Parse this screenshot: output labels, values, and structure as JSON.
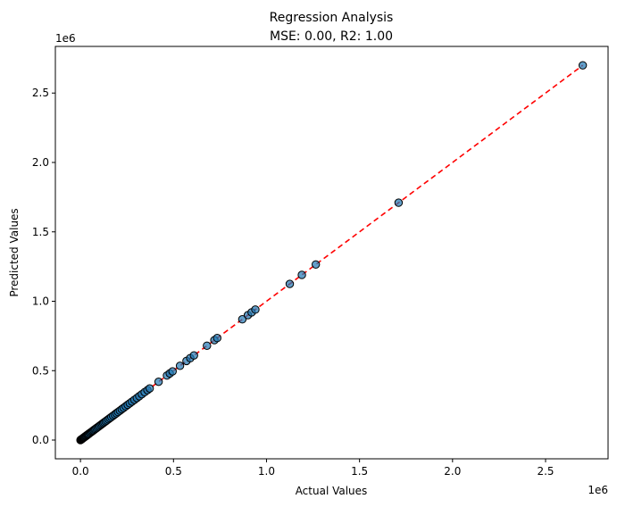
{
  "chart_data": {
    "type": "scatter",
    "title_line1": "Regression Analysis",
    "title_line2": "MSE: 0.00, R2: 1.00",
    "xlabel": "Actual Values",
    "ylabel": "Predicted Values",
    "x_offset_label": "1e6",
    "y_offset_label": "1e6",
    "xlim": [
      -0.135,
      2.836
    ],
    "ylim": [
      -0.135,
      2.836
    ],
    "xticks": [
      0.0,
      0.5,
      1.0,
      1.5,
      2.0,
      2.5
    ],
    "yticks": [
      0.0,
      0.5,
      1.0,
      1.5,
      2.0,
      2.5
    ],
    "xtick_labels": [
      "0.0",
      "0.5",
      "1.0",
      "1.5",
      "2.0",
      "2.5"
    ],
    "ytick_labels": [
      "0.0",
      "0.5",
      "1.0",
      "1.5",
      "2.0",
      "2.5"
    ],
    "reference_line": {
      "from": [
        0.0,
        0.0
      ],
      "to": [
        2.7,
        2.7
      ],
      "style": "dashed",
      "color": "#ff0000"
    },
    "point_color": "#1f77b4",
    "point_edge_color": "#000000",
    "points": [
      [
        0.0,
        0.0
      ],
      [
        0.002,
        0.002
      ],
      [
        0.004,
        0.004
      ],
      [
        0.006,
        0.006
      ],
      [
        0.008,
        0.008
      ],
      [
        0.01,
        0.01
      ],
      [
        0.012,
        0.012
      ],
      [
        0.015,
        0.015
      ],
      [
        0.018,
        0.018
      ],
      [
        0.021,
        0.021
      ],
      [
        0.025,
        0.025
      ],
      [
        0.029,
        0.029
      ],
      [
        0.033,
        0.033
      ],
      [
        0.037,
        0.037
      ],
      [
        0.041,
        0.041
      ],
      [
        0.045,
        0.045
      ],
      [
        0.05,
        0.05
      ],
      [
        0.055,
        0.055
      ],
      [
        0.06,
        0.06
      ],
      [
        0.065,
        0.065
      ],
      [
        0.07,
        0.07
      ],
      [
        0.075,
        0.075
      ],
      [
        0.08,
        0.08
      ],
      [
        0.086,
        0.086
      ],
      [
        0.092,
        0.092
      ],
      [
        0.098,
        0.098
      ],
      [
        0.104,
        0.104
      ],
      [
        0.11,
        0.11
      ],
      [
        0.116,
        0.116
      ],
      [
        0.122,
        0.122
      ],
      [
        0.128,
        0.128
      ],
      [
        0.135,
        0.135
      ],
      [
        0.142,
        0.142
      ],
      [
        0.15,
        0.15
      ],
      [
        0.158,
        0.158
      ],
      [
        0.166,
        0.166
      ],
      [
        0.175,
        0.175
      ],
      [
        0.184,
        0.184
      ],
      [
        0.193,
        0.193
      ],
      [
        0.202,
        0.202
      ],
      [
        0.212,
        0.212
      ],
      [
        0.222,
        0.222
      ],
      [
        0.232,
        0.232
      ],
      [
        0.243,
        0.243
      ],
      [
        0.254,
        0.254
      ],
      [
        0.265,
        0.265
      ],
      [
        0.277,
        0.277
      ],
      [
        0.29,
        0.29
      ],
      [
        0.303,
        0.303
      ],
      [
        0.316,
        0.316
      ],
      [
        0.33,
        0.33
      ],
      [
        0.345,
        0.345
      ],
      [
        0.36,
        0.36
      ],
      [
        0.372,
        0.372
      ],
      [
        0.42,
        0.42
      ],
      [
        0.465,
        0.465
      ],
      [
        0.48,
        0.48
      ],
      [
        0.495,
        0.495
      ],
      [
        0.535,
        0.535
      ],
      [
        0.57,
        0.57
      ],
      [
        0.59,
        0.59
      ],
      [
        0.61,
        0.61
      ],
      [
        0.68,
        0.68
      ],
      [
        0.72,
        0.72
      ],
      [
        0.735,
        0.735
      ],
      [
        0.87,
        0.87
      ],
      [
        0.9,
        0.9
      ],
      [
        0.92,
        0.92
      ],
      [
        0.94,
        0.94
      ],
      [
        1.125,
        1.125
      ],
      [
        1.19,
        1.19
      ],
      [
        1.265,
        1.265
      ],
      [
        1.71,
        1.71
      ],
      [
        2.7,
        2.7
      ]
    ]
  }
}
